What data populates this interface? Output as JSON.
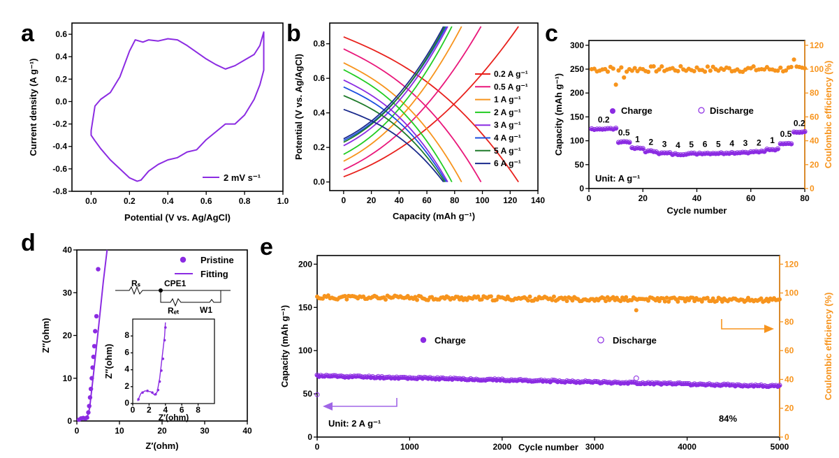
{
  "colors": {
    "purple": "#8B2BE2",
    "orange": "#F7941D",
    "black": "#000000"
  },
  "chart_data": [
    {
      "panel": "a",
      "type": "line",
      "xlabel": "Potential (V vs. Ag/AgCl)",
      "ylabel": "Current density (A g⁻¹)",
      "xlim": [
        -0.1,
        1.0
      ],
      "ylim": [
        -0.8,
        0.7
      ],
      "xticks": [
        0.0,
        0.2,
        0.4,
        0.6,
        0.8,
        1.0
      ],
      "yticks": [
        -0.8,
        -0.6,
        -0.4,
        -0.2,
        0.0,
        0.2,
        0.4,
        0.6
      ],
      "legend": "2 mV s⁻¹",
      "legend_position": "bottom-right",
      "series": [
        {
          "name": "2 mV s⁻¹",
          "color": "#8B2BE2",
          "x": [
            0.0,
            0.02,
            0.05,
            0.1,
            0.15,
            0.2,
            0.23,
            0.27,
            0.3,
            0.35,
            0.4,
            0.45,
            0.5,
            0.55,
            0.6,
            0.65,
            0.7,
            0.75,
            0.8,
            0.85,
            0.88,
            0.9,
            0.9,
            0.88,
            0.85,
            0.8,
            0.75,
            0.7,
            0.65,
            0.6,
            0.55,
            0.5,
            0.45,
            0.4,
            0.35,
            0.3,
            0.26,
            0.24,
            0.2,
            0.15,
            0.1,
            0.05,
            0.02,
            0.0,
            0.0
          ],
          "y": [
            -0.26,
            -0.04,
            0.02,
            0.08,
            0.22,
            0.45,
            0.55,
            0.53,
            0.55,
            0.54,
            0.56,
            0.55,
            0.5,
            0.44,
            0.38,
            0.33,
            0.29,
            0.32,
            0.37,
            0.42,
            0.5,
            0.62,
            0.28,
            0.15,
            0.02,
            -0.12,
            -0.2,
            -0.2,
            -0.27,
            -0.34,
            -0.43,
            -0.45,
            -0.5,
            -0.52,
            -0.56,
            -0.62,
            -0.7,
            -0.71,
            -0.68,
            -0.6,
            -0.52,
            -0.42,
            -0.35,
            -0.3,
            -0.26
          ]
        }
      ]
    },
    {
      "panel": "b",
      "type": "line",
      "xlabel": "Capacity (mAh g⁻¹)",
      "ylabel": "Potential (V vs. Ag/AgCl)",
      "xlim": [
        -10,
        140
      ],
      "ylim": [
        -0.05,
        0.92
      ],
      "xticks": [
        0,
        20,
        40,
        60,
        80,
        100,
        120,
        140
      ],
      "yticks": [
        0.0,
        0.2,
        0.4,
        0.6,
        0.8
      ],
      "legend_position": "top-right",
      "series": [
        {
          "name": "0.2 A g⁻¹",
          "color": "#E8211C",
          "charge_end": 126,
          "start_v": 0.03,
          "discharge_start": 0.84,
          "discharge_end": 126
        },
        {
          "name": "0.5 A g⁻¹",
          "color": "#E9177A",
          "charge_end": 99,
          "start_v": 0.07,
          "discharge_start": 0.77,
          "discharge_end": 99
        },
        {
          "name": "1 A g⁻¹",
          "color": "#F7941D",
          "charge_end": 85,
          "start_v": 0.12,
          "discharge_start": 0.69,
          "discharge_end": 85
        },
        {
          "name": "2 A g⁻¹",
          "color": "#22CC22",
          "charge_end": 78,
          "start_v": 0.16,
          "discharge_start": 0.65,
          "discharge_end": 78
        },
        {
          "name": "3 A g⁻¹",
          "color": "#8B2BE2",
          "charge_end": 75,
          "start_v": 0.21,
          "discharge_start": 0.59,
          "discharge_end": 75
        },
        {
          "name": "4 A g⁻¹",
          "color": "#1C4FE0",
          "charge_end": 74,
          "start_v": 0.24,
          "discharge_start": 0.55,
          "discharge_end": 74
        },
        {
          "name": "5 A g⁻¹",
          "color": "#1E7A2A",
          "charge_end": 73,
          "start_v": 0.23,
          "discharge_start": 0.5,
          "discharge_end": 73
        },
        {
          "name": "6 A g⁻¹",
          "color": "#1A2A8C",
          "charge_end": 72,
          "start_v": 0.25,
          "discharge_start": 0.42,
          "discharge_end": 72
        }
      ]
    },
    {
      "panel": "c",
      "type": "scatter",
      "xlabel": "Cycle number",
      "ylabel": "Capacity (mAh g⁻¹)",
      "y2label": "Coulombic efficiency (%)",
      "xlim": [
        0,
        80
      ],
      "ylim": [
        0,
        310
      ],
      "y2lim": [
        0,
        124
      ],
      "xticks": [
        0,
        20,
        40,
        60,
        80
      ],
      "yticks": [
        0,
        50,
        100,
        150,
        200,
        250,
        300
      ],
      "y2ticks": [
        0,
        20,
        40,
        60,
        80,
        100,
        120
      ],
      "legend": [
        "Charge",
        "Discharge"
      ],
      "unit_note": "Unit: A g⁻¹",
      "rate_labels": [
        "0.2",
        "0.5",
        "1",
        "2",
        "3",
        "4",
        "5",
        "6",
        "5",
        "4",
        "3",
        "2",
        "1",
        "0.5",
        "0.2"
      ],
      "segments": [
        {
          "rate": "0.2",
          "from": 1,
          "to": 10,
          "capacity": 125
        },
        {
          "rate": "0.5",
          "from": 11,
          "to": 15,
          "capacity": 98
        },
        {
          "rate": "1",
          "from": 16,
          "to": 20,
          "capacity": 84
        },
        {
          "rate": "2",
          "from": 21,
          "to": 25,
          "capacity": 78
        },
        {
          "rate": "3",
          "from": 26,
          "to": 30,
          "capacity": 74
        },
        {
          "rate": "4",
          "from": 31,
          "to": 35,
          "capacity": 72
        },
        {
          "rate": "5",
          "from": 36,
          "to": 40,
          "capacity": 73
        },
        {
          "rate": "6",
          "from": 41,
          "to": 45,
          "capacity": 74
        },
        {
          "rate": "5",
          "from": 46,
          "to": 50,
          "capacity": 74
        },
        {
          "rate": "4",
          "from": 51,
          "to": 55,
          "capacity": 75
        },
        {
          "rate": "3",
          "from": 56,
          "to": 60,
          "capacity": 76
        },
        {
          "rate": "2",
          "from": 61,
          "to": 65,
          "capacity": 77
        },
        {
          "rate": "1",
          "from": 66,
          "to": 70,
          "capacity": 82
        },
        {
          "rate": "0.5",
          "from": 71,
          "to": 75,
          "capacity": 95
        },
        {
          "rate": "0.2",
          "from": 76,
          "to": 80,
          "capacity": 118
        }
      ],
      "efficiency_typical": 100,
      "efficiency_outliers": [
        {
          "cycle": 10,
          "value": 87
        },
        {
          "cycle": 13,
          "value": 93
        },
        {
          "cycle": 76,
          "value": 108
        }
      ]
    },
    {
      "panel": "d",
      "type": "scatter",
      "xlabel": "Z′(ohm)",
      "ylabel": "Z″(ohm)",
      "xlim": [
        0,
        40
      ],
      "ylim": [
        0,
        40
      ],
      "xticks": [
        0,
        10,
        20,
        30,
        40
      ],
      "yticks": [
        0,
        10,
        20,
        30,
        40
      ],
      "legend": [
        "Pristine",
        "Fitting"
      ],
      "circuit_labels": [
        "Rₛ",
        "CPE1",
        "Rₑₜ",
        "W1"
      ],
      "series": [
        {
          "name": "Pristine",
          "x": [
            0.5,
            1.0,
            1.5,
            2.0,
            2.4,
            2.7,
            2.9,
            3.1,
            3.3,
            3.5,
            3.7,
            3.9,
            4.1,
            4.3,
            4.6,
            5.0
          ],
          "y": [
            0.3,
            0.6,
            0.7,
            0.6,
            0.8,
            2.0,
            3.5,
            5.5,
            7.5,
            10.0,
            12.5,
            15.0,
            17.5,
            21.0,
            24.5,
            35.5
          ]
        },
        {
          "name": "Fitting",
          "x": [
            0.5,
            1.5,
            2.4,
            3.0,
            3.8,
            5.0,
            6.2,
            7.1
          ],
          "y": [
            0.2,
            0.7,
            0.7,
            3.0,
            10.0,
            21.0,
            32.5,
            40.0
          ]
        }
      ],
      "inset": {
        "xlim": [
          0,
          10
        ],
        "ylim": [
          0,
          10
        ],
        "xticks": [
          0,
          2,
          4,
          6,
          8
        ],
        "yticks": [
          0,
          2,
          4,
          6,
          8
        ],
        "xlabel": "Z′(ohm)",
        "ylabel": "Z″(ohm)"
      }
    },
    {
      "panel": "e",
      "type": "scatter",
      "xlabel": "Cycle number",
      "ylabel": "Capacity (mAh g⁻¹)",
      "y2label": "Coulombic efficiency (%)",
      "xlim": [
        0,
        5000
      ],
      "ylim": [
        0,
        210
      ],
      "y2lim": [
        0,
        126
      ],
      "xticks": [
        0,
        1000,
        2000,
        3000,
        4000,
        5000
      ],
      "yticks": [
        0,
        50,
        100,
        150,
        200
      ],
      "y2ticks": [
        0,
        20,
        40,
        60,
        80,
        100,
        120
      ],
      "legend": [
        "Charge",
        "Discharge"
      ],
      "unit_note": "Unit: 2 A g⁻¹",
      "retention": "84%",
      "capacity_start": 71,
      "capacity_end": 59,
      "efficiency_typical": 97,
      "efficiency_outlier": {
        "cycle": 3450,
        "value": 88
      }
    }
  ],
  "panel_labels": [
    "a",
    "b",
    "c",
    "d",
    "e"
  ]
}
